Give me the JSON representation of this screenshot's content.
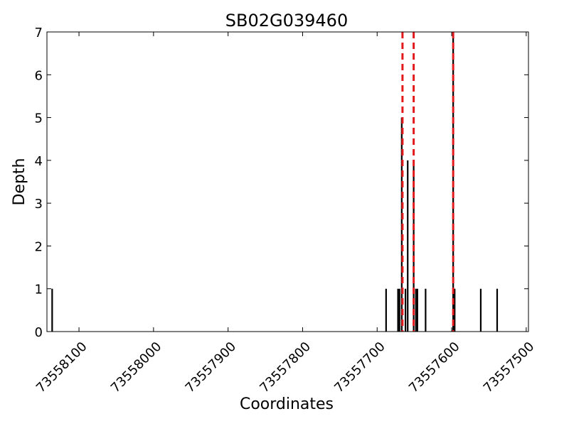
{
  "chart_data": {
    "type": "bar",
    "title": "SB02G039460",
    "xlabel": "Coordinates",
    "ylabel": "Depth",
    "x_reversed": true,
    "xlim": [
      73558143,
      73557497
    ],
    "ylim": [
      0,
      7
    ],
    "xticks": [
      73558100,
      73558000,
      73557900,
      73557800,
      73557700,
      73557600,
      73557500
    ],
    "yticks": [
      0,
      1,
      2,
      3,
      4,
      5,
      6,
      7
    ],
    "grid": false,
    "bar_color": "#000000",
    "marker_color": "#e31a1c",
    "points": [
      {
        "x": 73558136,
        "y": 1
      },
      {
        "x": 73557688,
        "y": 1
      },
      {
        "x": 73557672,
        "y": 1
      },
      {
        "x": 73557670,
        "y": 1
      },
      {
        "x": 73557667,
        "y": 5
      },
      {
        "x": 73557662,
        "y": 1
      },
      {
        "x": 73557659,
        "y": 4
      },
      {
        "x": 73557651,
        "y": 4
      },
      {
        "x": 73557648,
        "y": 1
      },
      {
        "x": 73557646,
        "y": 1
      },
      {
        "x": 73557635,
        "y": 1
      },
      {
        "x": 73557598,
        "y": 7
      },
      {
        "x": 73557596,
        "y": 1
      },
      {
        "x": 73557561,
        "y": 1
      },
      {
        "x": 73557539,
        "y": 1
      }
    ],
    "reference_lines": [
      73557666,
      73557651,
      73557598
    ]
  }
}
